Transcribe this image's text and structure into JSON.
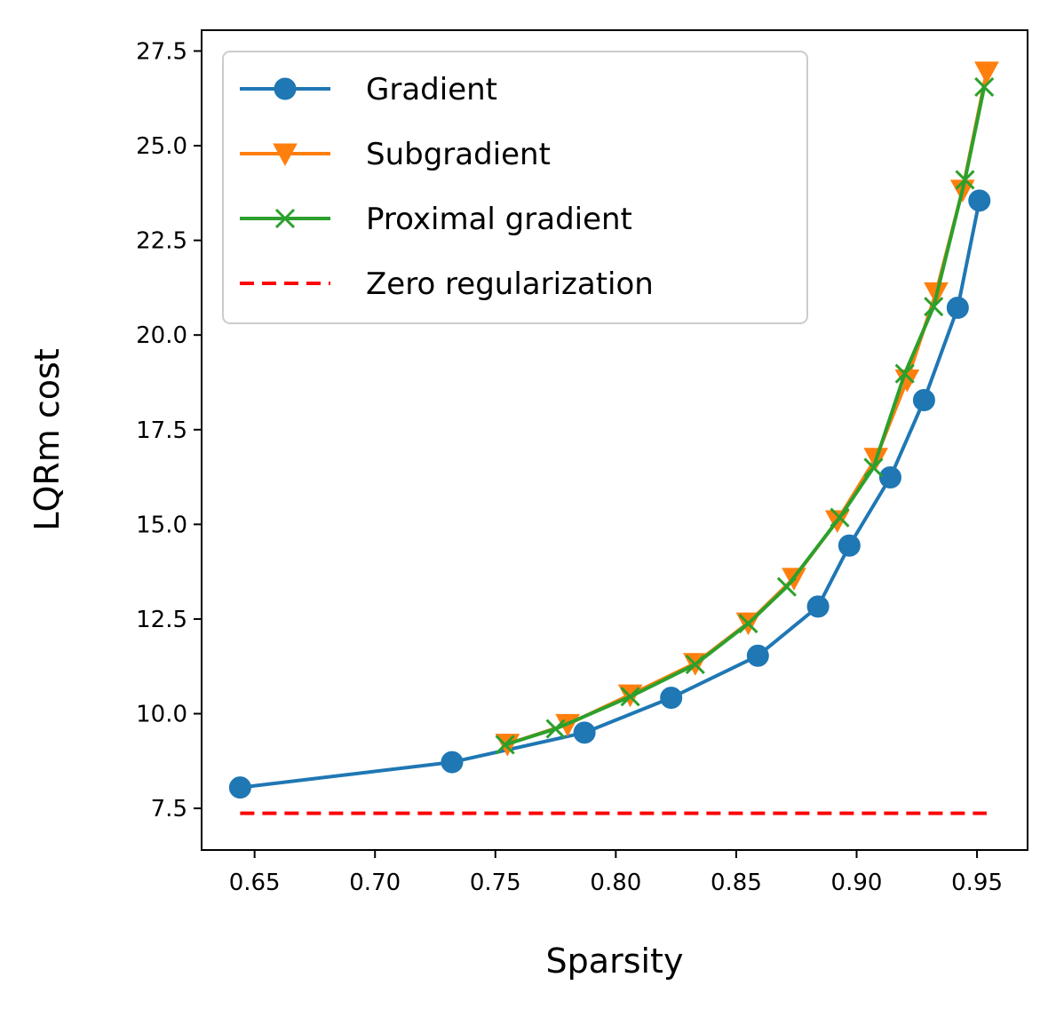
{
  "chart_data": {
    "type": "line",
    "title": "",
    "xlabel": "Sparsity",
    "ylabel": "LQRm cost",
    "xlim": [
      0.628,
      0.971
    ],
    "ylim": [
      6.4,
      28.05
    ],
    "xticks": [
      "0.65",
      "0.70",
      "0.75",
      "0.80",
      "0.85",
      "0.90",
      "0.95"
    ],
    "xtick_values": [
      0.65,
      0.7,
      0.75,
      0.8,
      0.85,
      0.9,
      0.95
    ],
    "yticks": [
      "7.5",
      "10.0",
      "12.5",
      "15.0",
      "17.5",
      "20.0",
      "22.5",
      "25.0",
      "27.5"
    ],
    "ytick_values": [
      7.5,
      10.0,
      12.5,
      15.0,
      17.5,
      20.0,
      22.5,
      25.0,
      27.5
    ],
    "legend_position": "top-left",
    "series": [
      {
        "name": "Gradient",
        "color": "#1f77b4",
        "marker": "circle",
        "dash": "solid",
        "x": [
          0.644,
          0.732,
          0.787,
          0.823,
          0.859,
          0.884,
          0.897,
          0.914,
          0.928,
          0.942,
          0.951
        ],
        "y": [
          8.05,
          8.72,
          9.5,
          10.42,
          11.53,
          12.83,
          14.44,
          16.24,
          18.28,
          20.72,
          23.55
        ]
      },
      {
        "name": "Subgradient",
        "color": "#ff7f0e",
        "marker": "triangle-down",
        "dash": "solid",
        "x": [
          0.755,
          0.78,
          0.806,
          0.833,
          0.855,
          0.874,
          0.892,
          0.908,
          0.921,
          0.933,
          0.944,
          0.954
        ],
        "y": [
          9.2,
          9.72,
          10.5,
          11.33,
          12.4,
          13.58,
          15.1,
          16.75,
          18.82,
          21.12,
          23.83,
          26.95
        ]
      },
      {
        "name": "Proximal gradient",
        "color": "#2ca02c",
        "marker": "x",
        "dash": "solid",
        "x": [
          0.754,
          0.775,
          0.806,
          0.833,
          0.855,
          0.871,
          0.893,
          0.907,
          0.92,
          0.932,
          0.945,
          0.953
        ],
        "y": [
          9.18,
          9.6,
          10.45,
          11.3,
          12.38,
          13.35,
          15.18,
          16.5,
          18.98,
          20.75,
          24.1,
          26.55
        ]
      },
      {
        "name": "Zero regularization",
        "color": "#ff0000",
        "marker": "none",
        "dash": "dashed",
        "x": [
          0.644,
          0.954
        ],
        "y": [
          7.37,
          7.37
        ]
      }
    ]
  }
}
